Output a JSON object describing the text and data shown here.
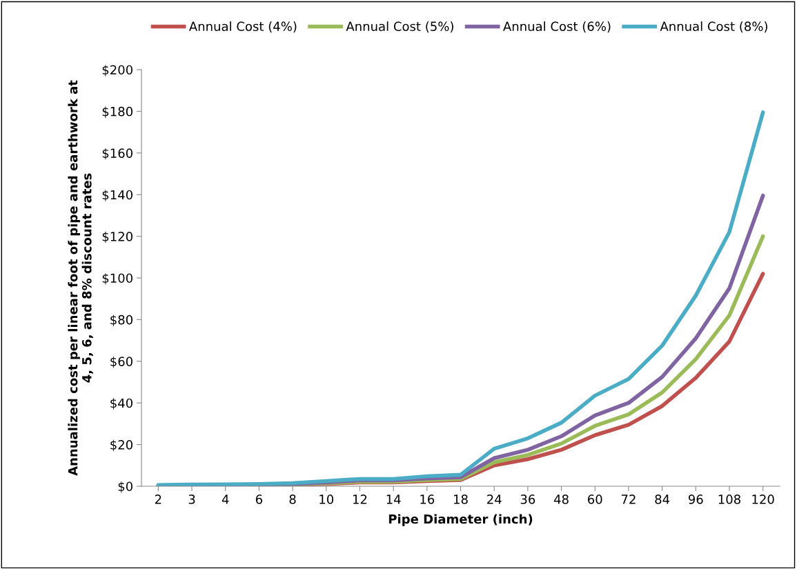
{
  "chart_data": {
    "type": "line",
    "xlabel": "Pipe Diameter (inch)",
    "ylabel": "Annualized cost per linear foot of pipe and earthwork at\n4, 5, 6, and 8% discount rates",
    "categories": [
      "2",
      "3",
      "4",
      "6",
      "8",
      "10",
      "12",
      "14",
      "16",
      "18",
      "24",
      "36",
      "48",
      "60",
      "72",
      "84",
      "96",
      "108",
      "120"
    ],
    "series": [
      {
        "name": "Annual Cost (4%)",
        "color": "#c0504d",
        "values": [
          null,
          null,
          null,
          0.5,
          0.7,
          1.1,
          1.8,
          1.8,
          2.5,
          3,
          10,
          13,
          17.5,
          24.5,
          29.5,
          38.5,
          52,
          69.5,
          102
        ]
      },
      {
        "name": "Annual Cost (5%)",
        "color": "#9bbb59",
        "values": [
          null,
          null,
          null,
          0.6,
          0.9,
          1.4,
          2.2,
          2.2,
          3,
          3.5,
          11.5,
          15,
          20.5,
          29,
          34.5,
          45,
          61,
          82,
          120
        ]
      },
      {
        "name": "Annual Cost (6%)",
        "color": "#8064a2",
        "values": [
          0.4,
          0.5,
          0.6,
          0.8,
          1.1,
          1.8,
          2.8,
          2.8,
          3.7,
          4.3,
          13.5,
          17.5,
          24,
          34,
          40,
          52.5,
          71,
          95,
          139.5
        ]
      },
      {
        "name": "Annual Cost (8%)",
        "color": "#4bacc6",
        "values": [
          0.6,
          0.8,
          0.9,
          1.1,
          1.5,
          2.5,
          3.5,
          3.5,
          4.8,
          5.5,
          18,
          23,
          30.5,
          43.5,
          51.5,
          67.5,
          91.5,
          122,
          179.5
        ]
      }
    ],
    "ylim": [
      0,
      200
    ],
    "yticks": [
      {
        "value": 0,
        "label": "$0"
      },
      {
        "value": 20,
        "label": "$20"
      },
      {
        "value": 40,
        "label": "$40"
      },
      {
        "value": 60,
        "label": "$60"
      },
      {
        "value": 80,
        "label": "$80"
      },
      {
        "value": 100,
        "label": "$100"
      },
      {
        "value": 120,
        "label": "$120"
      },
      {
        "value": 140,
        "label": "$140"
      },
      {
        "value": 160,
        "label": "$160"
      },
      {
        "value": 180,
        "label": "$180"
      },
      {
        "value": 200,
        "label": "$200"
      }
    ],
    "grid": false,
    "legend": "top",
    "marker": "none",
    "line_style": "solid"
  }
}
